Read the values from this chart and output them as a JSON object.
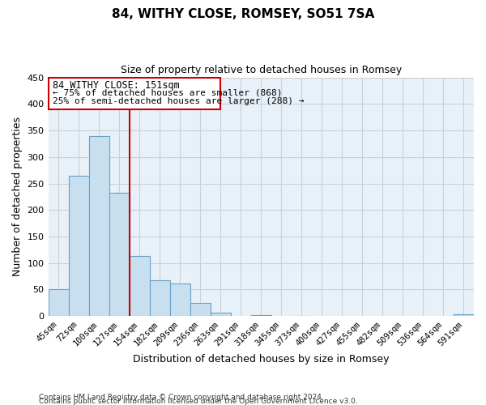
{
  "title": "84, WITHY CLOSE, ROMSEY, SO51 7SA",
  "subtitle": "Size of property relative to detached houses in Romsey",
  "xlabel": "Distribution of detached houses by size in Romsey",
  "ylabel": "Number of detached properties",
  "bar_color": "#c8dff0",
  "bar_edge_color": "#6aa0c8",
  "background_color": "#ffffff",
  "grid_color": "#c8d0d8",
  "categories": [
    "45sqm",
    "72sqm",
    "100sqm",
    "127sqm",
    "154sqm",
    "182sqm",
    "209sqm",
    "236sqm",
    "263sqm",
    "291sqm",
    "318sqm",
    "345sqm",
    "373sqm",
    "400sqm",
    "427sqm",
    "455sqm",
    "482sqm",
    "509sqm",
    "536sqm",
    "564sqm",
    "591sqm"
  ],
  "values": [
    50,
    265,
    340,
    232,
    114,
    68,
    62,
    25,
    7,
    0,
    2,
    0,
    1,
    0,
    0,
    0,
    0,
    0,
    0,
    0,
    3
  ],
  "red_line_after_index": 3,
  "ylim": [
    0,
    450
  ],
  "yticks": [
    0,
    50,
    100,
    150,
    200,
    250,
    300,
    350,
    400,
    450
  ],
  "annotation_title": "84 WITHY CLOSE: 151sqm",
  "annotation_line1": "← 75% of detached houses are smaller (868)",
  "annotation_line2": "25% of semi-detached houses are larger (288) →",
  "footer_line1": "Contains HM Land Registry data © Crown copyright and database right 2024.",
  "footer_line2": "Contains public sector information licensed under the Open Government Licence v3.0."
}
